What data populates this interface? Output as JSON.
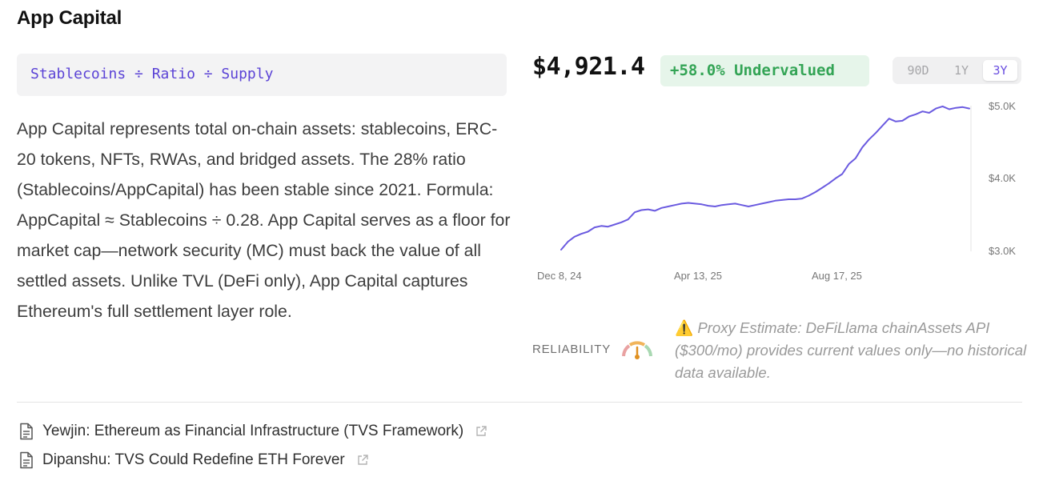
{
  "header": {
    "title": "App Capital"
  },
  "formula": "Stablecoins ÷ Ratio ÷ Supply",
  "description": "App Capital represents total on-chain assets: stablecoins, ERC-20 tokens, NFTs, RWAs, and bridged assets. The 28% ratio (Stablecoins/AppCapital) has been stable since 2021. Formula: AppCapital ≈ Stablecoins ÷ 0.28. App Capital serves as a floor for market cap—network security (MC) must back the value of all settled assets. Unlike TVL (DeFi only), App Capital captures Ethereum's full settlement layer role.",
  "price": "$4,921.4",
  "valuation_badge": "+58.0% Undervalued",
  "range_selector": {
    "options": [
      "90D",
      "1Y",
      "3Y"
    ],
    "selected": "3Y"
  },
  "colors": {
    "accent": "#6a4ee0",
    "line": "#6b5be0",
    "positive": "#33a455",
    "positive_bg": "#e6f5ea",
    "warning": "#e0a11b"
  },
  "chart_data": {
    "type": "line",
    "x_tick_labels": [
      "Dec 8, 24",
      "Apr 13, 25",
      "Aug 17, 25"
    ],
    "y_tick_labels": [
      "$5.0K",
      "$4.0K",
      "$3.0K"
    ],
    "ylim": [
      3000,
      5000
    ],
    "y_axis_position": "right",
    "grid": false,
    "series": [
      {
        "values": [
          3000,
          3110,
          3180,
          3220,
          3250,
          3310,
          3330,
          3320,
          3350,
          3380,
          3420,
          3520,
          3550,
          3560,
          3540,
          3580,
          3600,
          3620,
          3640,
          3650,
          3640,
          3630,
          3610,
          3600,
          3620,
          3630,
          3640,
          3620,
          3600,
          3620,
          3640,
          3660,
          3680,
          3690,
          3700,
          3700,
          3710,
          3750,
          3800,
          3860,
          3920,
          3990,
          4050,
          4190,
          4270,
          4420,
          4530,
          4620,
          4720,
          4820,
          4780,
          4790,
          4850,
          4880,
          4920,
          4900,
          4960,
          4990,
          4950,
          4970,
          4980,
          4960
        ]
      }
    ]
  },
  "reliability": {
    "label": "RELIABILITY",
    "level": "medium"
  },
  "note": {
    "icon": "warning-icon",
    "text": "Proxy Estimate: DeFiLlama chainAssets API ($300/mo) provides current values only—no historical data available."
  },
  "links": [
    {
      "text": "Yewjin: Ethereum as Financial Infrastructure (TVS Framework)"
    },
    {
      "text": "Dipanshu: TVS Could Redefine ETH Forever"
    }
  ]
}
